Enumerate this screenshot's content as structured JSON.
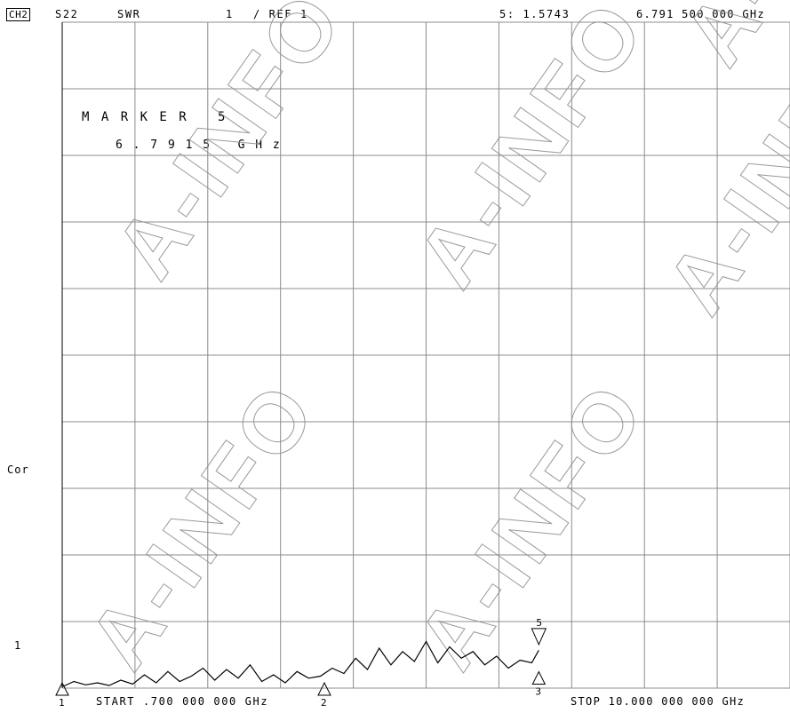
{
  "header": {
    "channel": "CH2",
    "parameter": "S22",
    "format": "SWR",
    "scale": "1",
    "ref": "/ REF 1",
    "marker_readout_value": "5: 1.5743",
    "marker_readout_freq": "6.791 500 000 GHz"
  },
  "marker_box": {
    "title": "M A R K E R   5",
    "freq": "6 . 7 9 1 5   G H z"
  },
  "side": {
    "cor_label": "Cor",
    "ref_pos_label": "1"
  },
  "footer": {
    "start": "START .700 000 000 GHz",
    "stop": "STOP 10.000 000 000 GHz"
  },
  "watermark": "A-INFO",
  "colors": {
    "trace": "#000000",
    "grid": "#8c8c8c",
    "watermark": "#9a9a9a"
  },
  "chart_data": {
    "type": "line",
    "title": "",
    "xlabel": "",
    "ylabel": "",
    "x_unit": "GHz",
    "xlim": [
      0.7,
      10.0
    ],
    "ylim": [
      1.0,
      11.0
    ],
    "grid": true,
    "grid_divisions": {
      "x": 10,
      "y": 10
    },
    "series": [
      {
        "x": [
          0.7,
          0.85,
          1.0,
          1.15,
          1.3,
          1.45,
          1.6,
          1.75,
          1.9,
          2.05,
          2.2,
          2.35,
          2.5,
          2.65,
          2.8,
          2.95,
          3.1,
          3.25,
          3.4,
          3.55,
          3.7,
          3.85,
          4.0,
          4.15,
          4.3,
          4.45,
          4.6,
          4.75,
          4.9,
          5.05,
          5.2,
          5.35,
          5.5,
          5.65,
          5.8,
          5.95,
          6.1,
          6.25,
          6.4,
          6.55,
          6.7,
          6.79
        ],
        "y": [
          1.02,
          1.1,
          1.05,
          1.08,
          1.04,
          1.12,
          1.06,
          1.2,
          1.08,
          1.25,
          1.1,
          1.18,
          1.3,
          1.12,
          1.28,
          1.15,
          1.35,
          1.1,
          1.2,
          1.08,
          1.25,
          1.15,
          1.18,
          1.3,
          1.22,
          1.45,
          1.28,
          1.6,
          1.35,
          1.55,
          1.4,
          1.7,
          1.38,
          1.62,
          1.45,
          1.55,
          1.35,
          1.48,
          1.3,
          1.42,
          1.38,
          1.57
        ]
      }
    ],
    "markers": [
      {
        "id": "1",
        "x": 0.7,
        "y": 1.0,
        "label": "1"
      },
      {
        "id": "2",
        "x": 4.05,
        "y": 1.0,
        "label": "2"
      },
      {
        "id": "3",
        "x": 6.79,
        "y": 1.3,
        "label": "3"
      },
      {
        "id": "5",
        "x": 6.79,
        "y": 1.5743,
        "label": "5",
        "active": true
      }
    ]
  }
}
